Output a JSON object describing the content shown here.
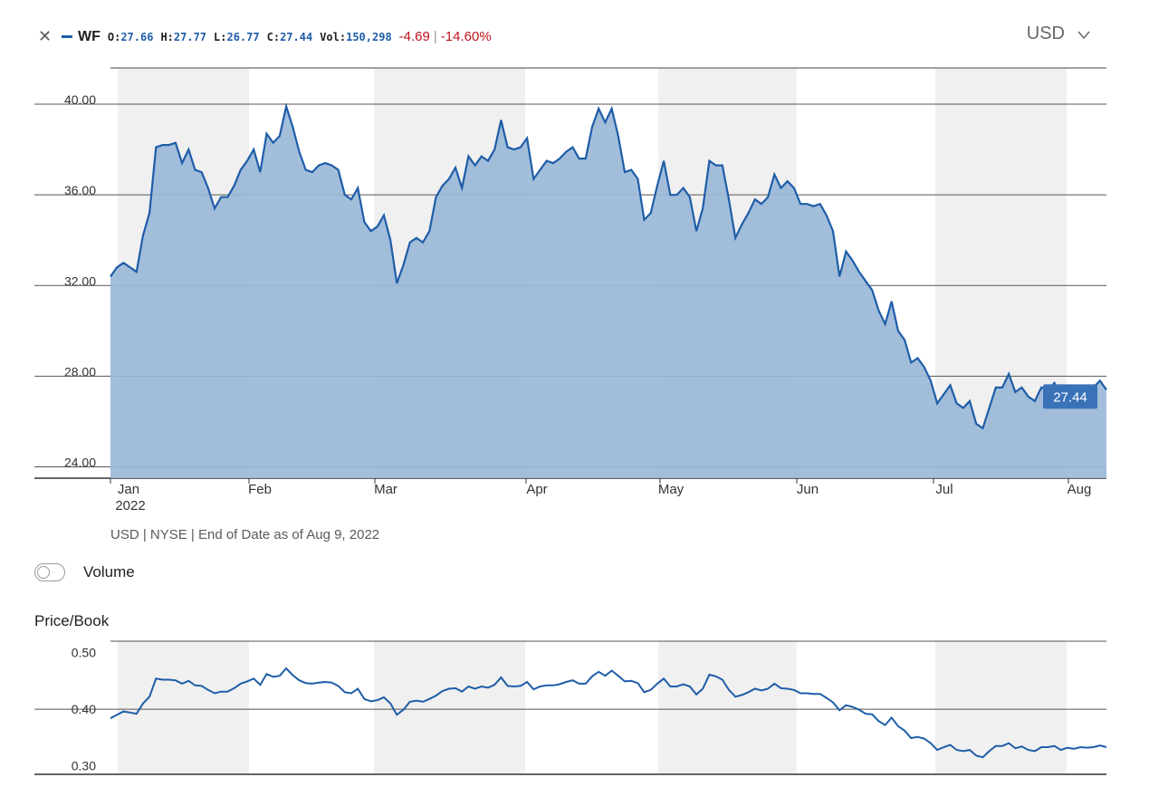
{
  "header": {
    "close_icon": "close-icon",
    "ticker": "WF",
    "stats": [
      {
        "key": "O:",
        "value": "27.66"
      },
      {
        "key": "H:",
        "value": "27.77"
      },
      {
        "key": "L:",
        "value": "26.77"
      },
      {
        "key": "C:",
        "value": "27.44"
      },
      {
        "key": "Vol:",
        "value": "150,298"
      }
    ],
    "change": "-4.69",
    "separator": "|",
    "change_pct": "-14.60%",
    "currency": "USD",
    "currency_icon": "chevron-down-icon"
  },
  "colors": {
    "line": "#1f5da8",
    "area": "#9ab8d8",
    "band": "#f0f0f0",
    "negative": "#c0141c"
  },
  "source_note": "USD | NYSE | End of Date as of Aug 9, 2022",
  "volume_toggle": {
    "label": "Volume",
    "on": false
  },
  "price_book_title": "Price/Book",
  "chart_data": [
    {
      "type": "area",
      "y_ticks": [
        "40.00",
        "36.00",
        "32.00",
        "28.00",
        "24.00"
      ],
      "ylim": [
        23.5,
        41.6
      ],
      "month_labels": [
        "Jan",
        "Feb",
        "Mar",
        "Apr",
        "May",
        "Jun",
        "Jul",
        "Aug"
      ],
      "year_label": "2022",
      "last_value_label": "27.44",
      "grid": "horizontal",
      "series": [
        {
          "name": "WF",
          "values": [
            32.4,
            32.8,
            33.0,
            32.8,
            32.6,
            34.2,
            35.2,
            38.1,
            38.2,
            38.2,
            38.3,
            37.4,
            38.0,
            37.1,
            37.0,
            36.3,
            35.4,
            35.9,
            35.9,
            36.4,
            37.1,
            37.5,
            38.0,
            37.0,
            38.7,
            38.3,
            38.6,
            39.9,
            39.0,
            37.9,
            37.1,
            37.0,
            37.3,
            37.4,
            37.3,
            37.1,
            36.0,
            35.8,
            36.3,
            34.8,
            34.4,
            34.6,
            35.1,
            34.0,
            32.1,
            32.9,
            33.9,
            34.1,
            33.9,
            34.4,
            35.9,
            36.4,
            36.7,
            37.2,
            36.3,
            37.7,
            37.3,
            37.7,
            37.5,
            38.0,
            39.3,
            38.1,
            38.0,
            38.1,
            38.5,
            36.7,
            37.1,
            37.5,
            37.4,
            37.6,
            37.9,
            38.1,
            37.6,
            37.6,
            39.0,
            39.8,
            39.2,
            39.8,
            38.6,
            37.0,
            37.1,
            36.7,
            34.9,
            35.2,
            36.4,
            37.5,
            36.0,
            36.0,
            36.3,
            35.9,
            34.4,
            35.4,
            37.5,
            37.3,
            37.3,
            35.8,
            34.1,
            34.7,
            35.2,
            35.8,
            35.6,
            35.9,
            36.9,
            36.3,
            36.6,
            36.3,
            35.6,
            35.6,
            35.5,
            35.6,
            35.1,
            34.4,
            32.4,
            33.5,
            33.1,
            32.6,
            32.2,
            31.8,
            30.9,
            30.3,
            31.3,
            30.0,
            29.6,
            28.6,
            28.8,
            28.4,
            27.8,
            26.8,
            27.2,
            27.6,
            26.8,
            26.6,
            26.9,
            25.9,
            25.7,
            26.6,
            27.5,
            27.5,
            28.1,
            27.3,
            27.5,
            27.1,
            26.9,
            27.5,
            27.4,
            27.7,
            27.1,
            27.5,
            27.3,
            27.5,
            27.4,
            27.5,
            27.8,
            27.4
          ]
        }
      ]
    },
    {
      "type": "line",
      "title": "Price/Book",
      "y_ticks": [
        "0.50",
        "0.40",
        "0.30"
      ],
      "ylim": [
        0.285,
        0.52
      ],
      "grid": "horizontal",
      "series": [
        {
          "name": "Price/Book",
          "values": [
            0.384,
            0.39,
            0.396,
            0.394,
            0.392,
            0.41,
            0.422,
            0.454,
            0.452,
            0.452,
            0.451,
            0.445,
            0.45,
            0.442,
            0.441,
            0.434,
            0.428,
            0.431,
            0.431,
            0.437,
            0.445,
            0.449,
            0.454,
            0.443,
            0.462,
            0.457,
            0.459,
            0.472,
            0.46,
            0.451,
            0.446,
            0.445,
            0.447,
            0.448,
            0.447,
            0.441,
            0.43,
            0.428,
            0.436,
            0.418,
            0.414,
            0.416,
            0.421,
            0.41,
            0.39,
            0.399,
            0.413,
            0.415,
            0.413,
            0.418,
            0.424,
            0.432,
            0.436,
            0.437,
            0.431,
            0.44,
            0.436,
            0.44,
            0.438,
            0.443,
            0.456,
            0.441,
            0.44,
            0.441,
            0.448,
            0.435,
            0.44,
            0.442,
            0.442,
            0.444,
            0.448,
            0.451,
            0.445,
            0.445,
            0.458,
            0.466,
            0.459,
            0.468,
            0.459,
            0.449,
            0.45,
            0.446,
            0.43,
            0.434,
            0.445,
            0.454,
            0.44,
            0.44,
            0.444,
            0.44,
            0.426,
            0.436,
            0.461,
            0.458,
            0.452,
            0.434,
            0.422,
            0.425,
            0.43,
            0.436,
            0.433,
            0.436,
            0.445,
            0.437,
            0.436,
            0.434,
            0.428,
            0.428,
            0.427,
            0.427,
            0.42,
            0.412,
            0.398,
            0.407,
            0.404,
            0.399,
            0.392,
            0.391,
            0.379,
            0.372,
            0.385,
            0.37,
            0.362,
            0.349,
            0.351,
            0.348,
            0.34,
            0.328,
            0.333,
            0.337,
            0.328,
            0.326,
            0.328,
            0.318,
            0.315,
            0.326,
            0.335,
            0.335,
            0.34,
            0.331,
            0.334,
            0.328,
            0.326,
            0.333,
            0.333,
            0.335,
            0.328,
            0.332,
            0.33,
            0.333,
            0.332,
            0.333,
            0.336,
            0.333
          ]
        }
      ]
    }
  ]
}
